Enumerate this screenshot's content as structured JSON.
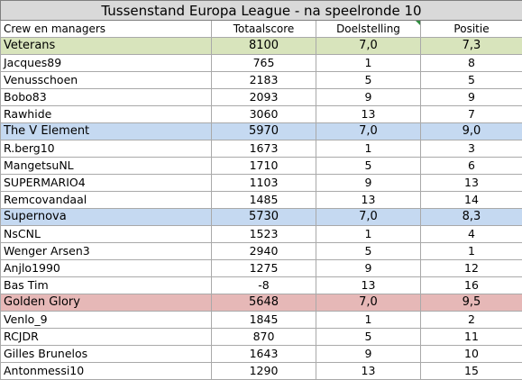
{
  "title": "Tussenstand Europa League - na speelronde 10",
  "headers": {
    "crew": "Crew en managers",
    "score": "Totaalscore",
    "goal": "Doelstelling",
    "position": "Positie"
  },
  "colors": {
    "title_bg": "#d9d9d9",
    "veterans": "#d8e4bc",
    "the_v_element": "#c5d9f1",
    "supernova": "#c5d9f1",
    "golden_glory": "#e6b8b7",
    "comment_marker": "#2e8b3e"
  },
  "rows": [
    {
      "name": "Veterans",
      "score": "8100",
      "goal": "7,0",
      "pos": "7,3"
    },
    {
      "name": "Jacques89",
      "score": "765",
      "goal": "1",
      "pos": "8"
    },
    {
      "name": "Venusschoen",
      "score": "2183",
      "goal": "5",
      "pos": "5"
    },
    {
      "name": "Bobo83",
      "score": "2093",
      "goal": "9",
      "pos": "9"
    },
    {
      "name": "Rawhide",
      "score": "3060",
      "goal": "13",
      "pos": "7"
    },
    {
      "name": "The V Element",
      "score": "5970",
      "goal": "7,0",
      "pos": "9,0"
    },
    {
      "name": "R.berg10",
      "score": "1673",
      "goal": "1",
      "pos": "3"
    },
    {
      "name": "MangetsuNL",
      "score": "1710",
      "goal": "5",
      "pos": "6"
    },
    {
      "name": "SUPERMARIO4",
      "score": "1103",
      "goal": "9",
      "pos": "13"
    },
    {
      "name": "Remcovandaal",
      "score": "1485",
      "goal": "13",
      "pos": "14"
    },
    {
      "name": "Supernova",
      "score": "5730",
      "goal": "7,0",
      "pos": "8,3"
    },
    {
      "name": "NsCNL",
      "score": "1523",
      "goal": "1",
      "pos": "4"
    },
    {
      "name": "Wenger Arsen3",
      "score": "2940",
      "goal": "5",
      "pos": "1"
    },
    {
      "name": "Anjlo1990",
      "score": "1275",
      "goal": "9",
      "pos": "12"
    },
    {
      "name": "Bas Tim",
      "score": "-8",
      "goal": "13",
      "pos": "16"
    },
    {
      "name": "Golden Glory",
      "score": "5648",
      "goal": "7,0",
      "pos": "9,5"
    },
    {
      "name": "Venlo_9",
      "score": "1845",
      "goal": "1",
      "pos": "2"
    },
    {
      "name": "RCJDR",
      "score": "870",
      "goal": "5",
      "pos": "11"
    },
    {
      "name": "Gilles Brunelos",
      "score": "1643",
      "goal": "9",
      "pos": "10"
    },
    {
      "name": "Antonmessi10",
      "score": "1290",
      "goal": "13",
      "pos": "15"
    }
  ]
}
